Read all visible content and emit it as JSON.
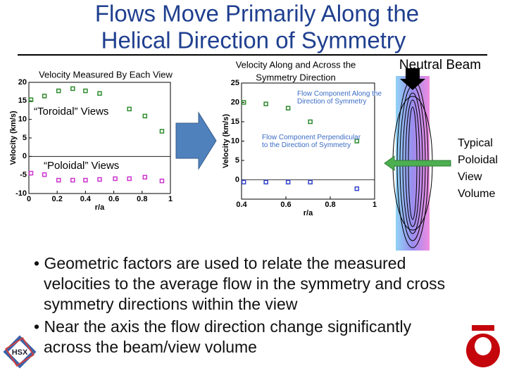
{
  "title_lines": [
    "Flows Move Primarily Along the",
    "Helical Direction of Symmetry"
  ],
  "chart_data": [
    {
      "type": "scatter",
      "title_lines": [
        "Velocity Measured By Each View"
      ],
      "x_label": "r/a",
      "y_label": "Velocity (km/s)",
      "xlim": [
        0,
        1
      ],
      "xticks": [
        0,
        0.2,
        0.4,
        0.6,
        0.8,
        1
      ],
      "ylim": [
        -10,
        20
      ],
      "yticks": [
        -10,
        -5,
        0,
        5,
        10,
        15,
        20
      ],
      "annotations": [
        "“Toroidal” Views",
        "“Poloidal” Views"
      ],
      "series": [
        {
          "color": "#2e8b2e",
          "x": [
            0.015,
            0.11,
            0.21,
            0.31,
            0.4,
            0.5,
            0.71,
            0.82,
            0.94
          ],
          "values": [
            15.3,
            16.3,
            17.7,
            18.3,
            17.7,
            17,
            12.8,
            10.9,
            6.8
          ]
        },
        {
          "color": "#cc33cc",
          "x": [
            0.015,
            0.11,
            0.21,
            0.31,
            0.4,
            0.5,
            0.61,
            0.71,
            0.82,
            0.94
          ],
          "values": [
            -4.5,
            -4.9,
            -6.4,
            -6.4,
            -6.4,
            -6.2,
            -6,
            -6,
            -5.6,
            -6.6
          ]
        }
      ]
    },
    {
      "type": "scatter",
      "title_lines": [
        "Velocity Along and Across the",
        "Symmetry Direction"
      ],
      "x_label": "r/a",
      "y_label": "Velocity (km/s)",
      "xlim": [
        0.4,
        1
      ],
      "xticks": [
        0.4,
        0.6,
        0.8,
        1
      ],
      "ylim": [
        -5,
        25
      ],
      "yticks": [
        0,
        5,
        10,
        15,
        20,
        25
      ],
      "annotations": [
        "Flow Component Along the Direction of Symmetry",
        "Flow Component Perpendicular to the Direction of Symmetry"
      ],
      "series": [
        {
          "color": "#2e8b2e",
          "x": [
            0.41,
            0.51,
            0.61,
            0.71,
            0.92
          ],
          "values": [
            20,
            19.6,
            18.5,
            15,
            10
          ]
        },
        {
          "color": "#3344cc",
          "x": [
            0.41,
            0.51,
            0.61,
            0.71,
            0.92
          ],
          "values": [
            -0.6,
            -0.6,
            -0.6,
            -0.6,
            -2.3
          ]
        }
      ]
    }
  ],
  "beam_label": "Neutral Beam",
  "volume_label_lines": [
    "Typical",
    "Poloidal",
    "View",
    "Volume"
  ],
  "bullets": [
    "Geometric factors are used to relate the measured velocities to the average flow in the symmetry and cross symmetry directions within the view",
    "Near the axis the flow direction change significantly across the beam/view volume"
  ],
  "logo_text": "HSX"
}
